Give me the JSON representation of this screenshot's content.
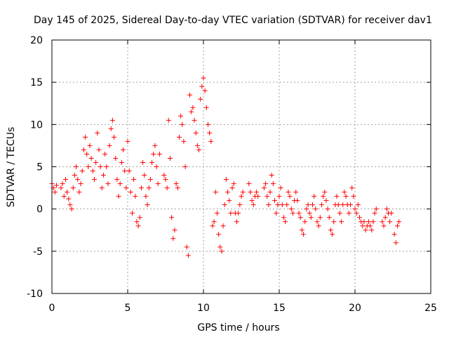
{
  "chart_data": {
    "type": "scatter",
    "title": "Day 145 of 2025, Sidereal Day-to-day VTEC variation (SDTVAR) for receiver dav1",
    "xlabel": "GPS time / hours",
    "ylabel": "SDTVAR / TECUs",
    "xlim": [
      0,
      25
    ],
    "ylim": [
      -10,
      20
    ],
    "x_ticks": [
      0,
      5,
      10,
      15,
      20,
      25
    ],
    "x_tick_labels": [
      "0",
      "5",
      "10",
      "15",
      "20",
      "25"
    ],
    "y_ticks": [
      -10,
      -5,
      0,
      5,
      10,
      15,
      20
    ],
    "y_tick_labels": [
      "-10",
      "-5",
      "0",
      "5",
      "10",
      "15",
      "20"
    ],
    "grid": true,
    "marker": "+",
    "color": "#ff0000",
    "series": [
      {
        "name": "SDTVAR",
        "points": [
          [
            0.0,
            3.0
          ],
          [
            0.1,
            2.5
          ],
          [
            0.2,
            2.0
          ],
          [
            0.3,
            2.8
          ],
          [
            0.6,
            2.5
          ],
          [
            0.7,
            3.0
          ],
          [
            0.8,
            1.5
          ],
          [
            0.9,
            3.5
          ],
          [
            1.0,
            2.0
          ],
          [
            1.1,
            1.2
          ],
          [
            1.2,
            0.5
          ],
          [
            1.3,
            0.0
          ],
          [
            1.4,
            2.5
          ],
          [
            1.5,
            4.0
          ],
          [
            1.6,
            5.0
          ],
          [
            1.7,
            3.5
          ],
          [
            1.8,
            2.0
          ],
          [
            1.9,
            3.0
          ],
          [
            2.0,
            4.5
          ],
          [
            2.1,
            7.0
          ],
          [
            2.2,
            8.5
          ],
          [
            2.3,
            6.5
          ],
          [
            2.4,
            5.0
          ],
          [
            2.5,
            7.5
          ],
          [
            2.6,
            6.0
          ],
          [
            2.7,
            4.5
          ],
          [
            2.8,
            3.5
          ],
          [
            2.9,
            5.5
          ],
          [
            3.0,
            9.0
          ],
          [
            3.1,
            7.0
          ],
          [
            3.2,
            5.0
          ],
          [
            3.3,
            2.5
          ],
          [
            3.4,
            4.0
          ],
          [
            3.5,
            6.5
          ],
          [
            3.6,
            5.0
          ],
          [
            3.7,
            3.0
          ],
          [
            3.8,
            7.5
          ],
          [
            3.9,
            9.5
          ],
          [
            4.0,
            10.5
          ],
          [
            4.1,
            8.5
          ],
          [
            4.2,
            6.0
          ],
          [
            4.3,
            3.5
          ],
          [
            4.4,
            1.5
          ],
          [
            4.5,
            3.0
          ],
          [
            4.6,
            5.5
          ],
          [
            4.7,
            7.0
          ],
          [
            4.8,
            4.5
          ],
          [
            4.9,
            2.5
          ],
          [
            5.0,
            8.0
          ],
          [
            5.1,
            4.5
          ],
          [
            5.2,
            2.0
          ],
          [
            5.3,
            -0.5
          ],
          [
            5.4,
            3.5
          ],
          [
            5.5,
            1.5
          ],
          [
            5.6,
            -1.5
          ],
          [
            5.7,
            -2.0
          ],
          [
            5.8,
            -1.0
          ],
          [
            5.9,
            2.5
          ],
          [
            6.0,
            5.5
          ],
          [
            6.1,
            4.0
          ],
          [
            6.2,
            1.5
          ],
          [
            6.3,
            0.5
          ],
          [
            6.4,
            2.5
          ],
          [
            6.5,
            3.5
          ],
          [
            6.6,
            5.5
          ],
          [
            6.7,
            6.5
          ],
          [
            6.8,
            7.5
          ],
          [
            6.9,
            5.0
          ],
          [
            7.0,
            3.0
          ],
          [
            7.1,
            6.5
          ],
          [
            7.4,
            4.0
          ],
          [
            7.5,
            3.5
          ],
          [
            7.6,
            2.5
          ],
          [
            7.7,
            10.5
          ],
          [
            7.8,
            6.0
          ],
          [
            7.9,
            -1.0
          ],
          [
            8.0,
            -3.5
          ],
          [
            8.1,
            -2.5
          ],
          [
            8.2,
            3.0
          ],
          [
            8.3,
            2.5
          ],
          [
            8.4,
            8.5
          ],
          [
            8.5,
            11.0
          ],
          [
            8.6,
            10.0
          ],
          [
            8.7,
            8.0
          ],
          [
            8.8,
            5.0
          ],
          [
            8.9,
            -4.5
          ],
          [
            9.0,
            -5.5
          ],
          [
            9.1,
            13.5
          ],
          [
            9.2,
            11.5
          ],
          [
            9.3,
            12.0
          ],
          [
            9.4,
            10.5
          ],
          [
            9.5,
            9.0
          ],
          [
            9.6,
            7.5
          ],
          [
            9.7,
            7.0
          ],
          [
            9.8,
            13.0
          ],
          [
            9.9,
            14.5
          ],
          [
            10.0,
            15.5
          ],
          [
            10.1,
            14.0
          ],
          [
            10.2,
            12.0
          ],
          [
            10.3,
            10.0
          ],
          [
            10.4,
            9.0
          ],
          [
            10.5,
            8.0
          ],
          [
            10.6,
            -2.0
          ],
          [
            10.7,
            -1.5
          ],
          [
            10.8,
            2.0
          ],
          [
            10.9,
            -0.5
          ],
          [
            11.0,
            -3.0
          ],
          [
            11.1,
            -4.5
          ],
          [
            11.2,
            -5.0
          ],
          [
            11.3,
            -2.0
          ],
          [
            11.4,
            0.5
          ],
          [
            11.5,
            3.5
          ],
          [
            11.6,
            2.0
          ],
          [
            11.7,
            1.0
          ],
          [
            11.8,
            -0.5
          ],
          [
            11.9,
            2.5
          ],
          [
            12.0,
            3.0
          ],
          [
            12.1,
            -0.5
          ],
          [
            12.2,
            -1.5
          ],
          [
            12.3,
            -0.5
          ],
          [
            12.4,
            0.5
          ],
          [
            12.5,
            1.5
          ],
          [
            12.6,
            2.0
          ],
          [
            13.0,
            3.0
          ],
          [
            13.1,
            2.0
          ],
          [
            13.2,
            1.0
          ],
          [
            13.3,
            0.5
          ],
          [
            13.4,
            1.5
          ],
          [
            13.5,
            2.0
          ],
          [
            13.6,
            1.5
          ],
          [
            14.0,
            2.5
          ],
          [
            14.1,
            3.0
          ],
          [
            14.2,
            1.5
          ],
          [
            14.3,
            0.5
          ],
          [
            14.4,
            2.0
          ],
          [
            14.5,
            4.0
          ],
          [
            14.6,
            3.0
          ],
          [
            14.7,
            1.0
          ],
          [
            14.8,
            -0.5
          ],
          [
            14.9,
            0.5
          ],
          [
            15.0,
            1.5
          ],
          [
            15.1,
            2.5
          ],
          [
            15.2,
            0.5
          ],
          [
            15.3,
            -1.0
          ],
          [
            15.4,
            -1.5
          ],
          [
            15.5,
            0.5
          ],
          [
            15.6,
            2.0
          ],
          [
            15.7,
            1.5
          ],
          [
            15.8,
            0.0
          ],
          [
            15.9,
            -0.5
          ],
          [
            16.0,
            1.0
          ],
          [
            16.1,
            2.0
          ],
          [
            16.2,
            1.0
          ],
          [
            16.3,
            -0.5
          ],
          [
            16.4,
            -1.0
          ],
          [
            16.5,
            -2.5
          ],
          [
            16.6,
            -3.0
          ],
          [
            16.7,
            -1.5
          ],
          [
            16.8,
            0.0
          ],
          [
            16.9,
            0.5
          ],
          [
            17.0,
            -0.5
          ],
          [
            17.1,
            -1.0
          ],
          [
            17.2,
            0.5
          ],
          [
            17.3,
            1.5
          ],
          [
            17.4,
            0.0
          ],
          [
            17.5,
            -1.5
          ],
          [
            17.6,
            -2.0
          ],
          [
            17.7,
            -1.0
          ],
          [
            17.8,
            0.5
          ],
          [
            17.9,
            1.5
          ],
          [
            18.0,
            2.0
          ],
          [
            18.1,
            1.0
          ],
          [
            18.2,
            0.0
          ],
          [
            18.3,
            -1.0
          ],
          [
            18.4,
            -2.5
          ],
          [
            18.5,
            -3.0
          ],
          [
            18.6,
            -1.5
          ],
          [
            18.7,
            0.5
          ],
          [
            18.8,
            1.5
          ],
          [
            18.9,
            0.5
          ],
          [
            19.0,
            -0.5
          ],
          [
            19.1,
            -1.5
          ],
          [
            19.2,
            0.5
          ],
          [
            19.3,
            2.0
          ],
          [
            19.4,
            1.5
          ],
          [
            19.5,
            0.5
          ],
          [
            19.6,
            -0.5
          ],
          [
            19.7,
            0.5
          ],
          [
            19.8,
            2.5
          ],
          [
            19.9,
            1.5
          ],
          [
            20.0,
            0.0
          ],
          [
            20.1,
            -0.5
          ],
          [
            20.2,
            0.5
          ],
          [
            20.3,
            -1.0
          ],
          [
            20.4,
            -1.5
          ],
          [
            20.5,
            -2.0
          ],
          [
            20.6,
            -1.5
          ],
          [
            20.7,
            -2.5
          ],
          [
            20.8,
            -2.0
          ],
          [
            20.9,
            -1.5
          ],
          [
            21.0,
            -2.0
          ],
          [
            21.1,
            -2.5
          ],
          [
            21.2,
            -1.5
          ],
          [
            21.3,
            -0.5
          ],
          [
            21.4,
            0.0
          ],
          [
            21.8,
            -1.5
          ],
          [
            21.9,
            -2.0
          ],
          [
            22.0,
            -1.0
          ],
          [
            22.1,
            0.0
          ],
          [
            22.2,
            -0.5
          ],
          [
            22.3,
            -1.5
          ],
          [
            22.4,
            -0.5
          ],
          [
            22.6,
            -3.0
          ],
          [
            22.7,
            -4.0
          ],
          [
            22.8,
            -2.0
          ],
          [
            22.9,
            -1.5
          ]
        ]
      }
    ]
  }
}
